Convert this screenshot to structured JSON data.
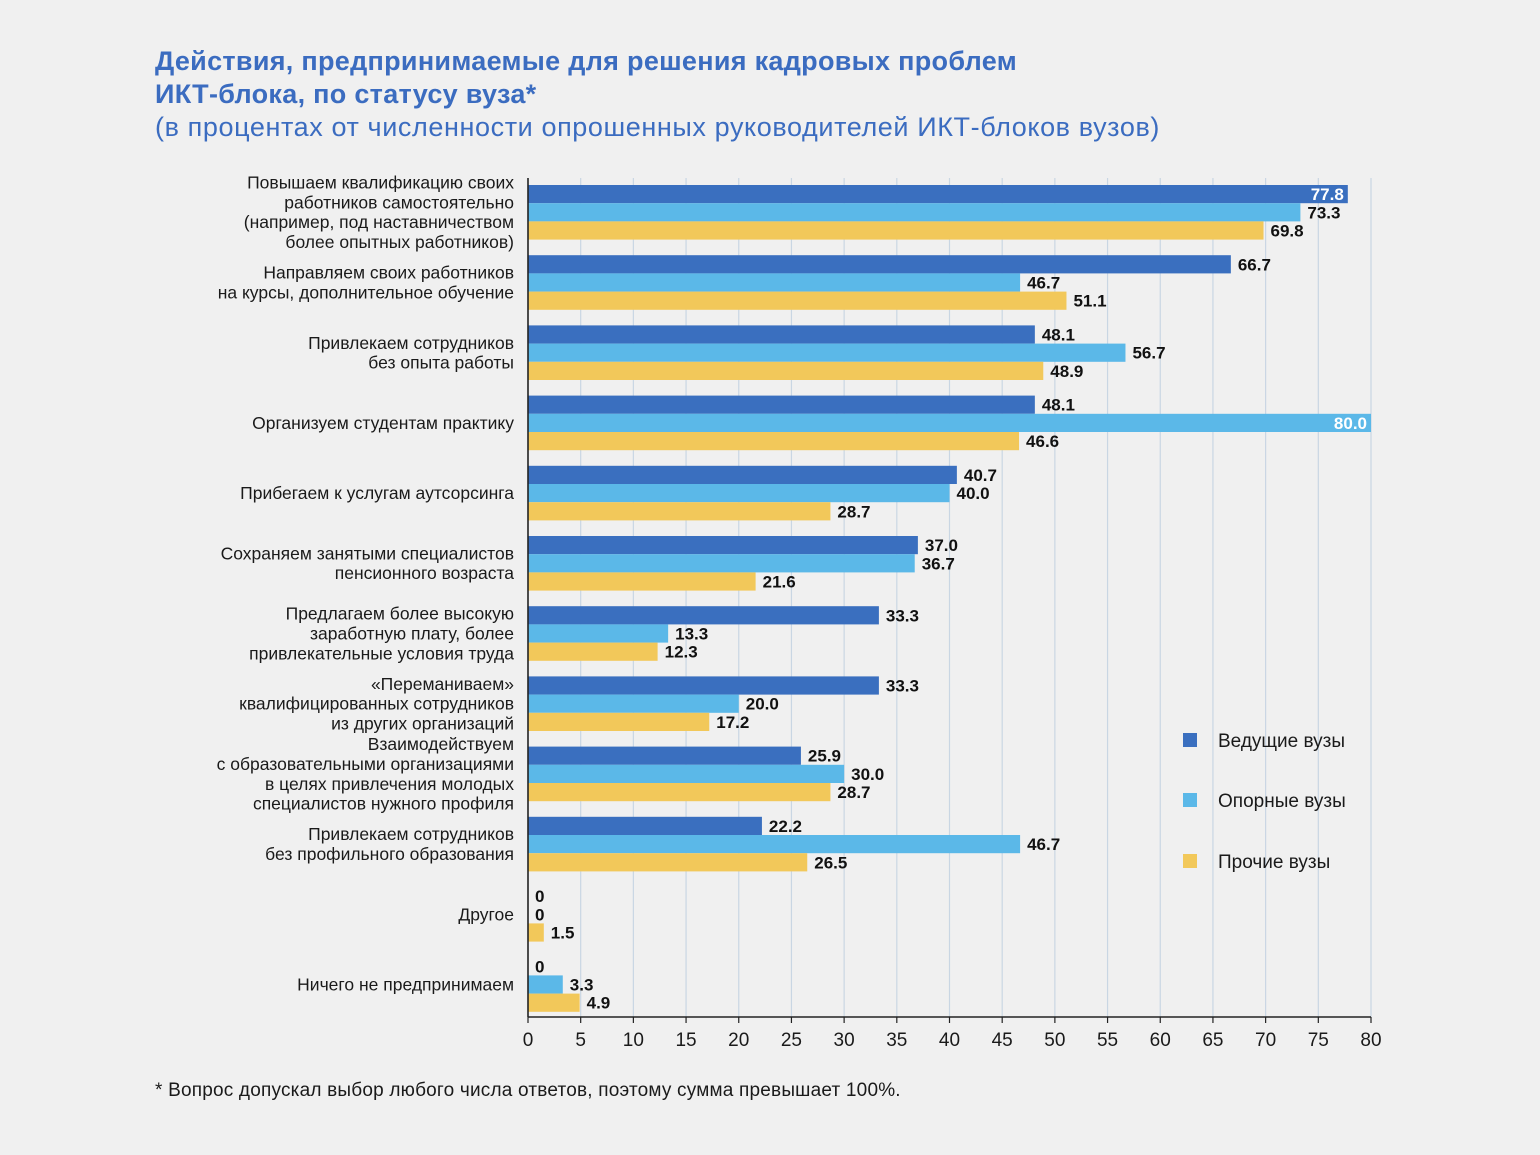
{
  "title": {
    "line1": "Действия, предпринимаемые для решения кадровых проблем",
    "line2": "ИКТ-блока, по статусу вуза*",
    "subtitle": "(в процентах от численности опрошенных руководителей ИКТ-блоков вузов)"
  },
  "footnote": "* Вопрос допускал выбор любого числа ответов, поэтому сумма превышает 100%.",
  "colors": {
    "series1": "#3a6fbf",
    "series2": "#5bb8e8",
    "series3": "#f2c85a",
    "grid": "#c9d6e3",
    "axis": "#222222"
  },
  "chart_data": {
    "type": "bar",
    "orientation": "horizontal",
    "xlim": [
      0,
      80
    ],
    "xticks": [
      "0",
      "5",
      "10",
      "15",
      "20",
      "25",
      "30",
      "35",
      "40",
      "45",
      "50",
      "55",
      "60",
      "65",
      "70",
      "75",
      "80"
    ],
    "grid": true,
    "legend_position": "right",
    "categories": [
      [
        "Повышаем квалификацию своих",
        "работников самостоятельно",
        "(например, под наставничеством",
        "более опытных работников)"
      ],
      [
        "Направляем своих работников",
        "на курсы, дополнительное обучение"
      ],
      [
        "Привлекаем сотрудников",
        "без опыта работы"
      ],
      [
        "Организуем студентам практику"
      ],
      [
        "Прибегаем к услугам аутсорсинга"
      ],
      [
        "Сохраняем занятыми специалистов",
        "пенсионного возраста"
      ],
      [
        "Предлагаем более высокую",
        "заработную плату, более",
        "привлекательные условия труда"
      ],
      [
        "«Переманиваем»",
        "квалифицированных сотрудников",
        "из других организаций"
      ],
      [
        "Взаимодействуем",
        "с образовательными организациями",
        "в целях привлечения молодых",
        "специалистов нужного профиля"
      ],
      [
        "Привлекаем сотрудников",
        "без профильного образования"
      ],
      [
        "Другое"
      ],
      [
        "Ничего не предпринимаем"
      ]
    ],
    "series": [
      {
        "name": "Ведущие вузы",
        "values": [
          77.8,
          66.7,
          48.1,
          48.1,
          40.7,
          37.0,
          33.3,
          33.3,
          25.9,
          22.2,
          0,
          0
        ],
        "labels": [
          "77.8",
          "66.7",
          "48.1",
          "48.1",
          "40.7",
          "37.0",
          "33.3",
          "33.3",
          "25.9",
          "22.2",
          "0",
          "0"
        ]
      },
      {
        "name": "Опорные вузы",
        "values": [
          73.3,
          46.7,
          56.7,
          80.0,
          40.0,
          36.7,
          13.3,
          20.0,
          30.0,
          46.7,
          0,
          3.3
        ],
        "labels": [
          "73.3",
          "46.7",
          "56.7",
          "80.0",
          "40.0",
          "36.7",
          "13.3",
          "20.0",
          "30.0",
          "46.7",
          "0",
          "3.3"
        ]
      },
      {
        "name": "Прочие вузы",
        "values": [
          69.8,
          51.1,
          48.9,
          46.6,
          28.7,
          21.6,
          12.3,
          17.2,
          28.7,
          26.5,
          1.5,
          4.9
        ],
        "labels": [
          "69.8",
          "51.1",
          "48.9",
          "46.6",
          "28.7",
          "21.6",
          "12.3",
          "17.2",
          "28.7",
          "26.5",
          "1.5",
          "4.9"
        ]
      }
    ]
  }
}
